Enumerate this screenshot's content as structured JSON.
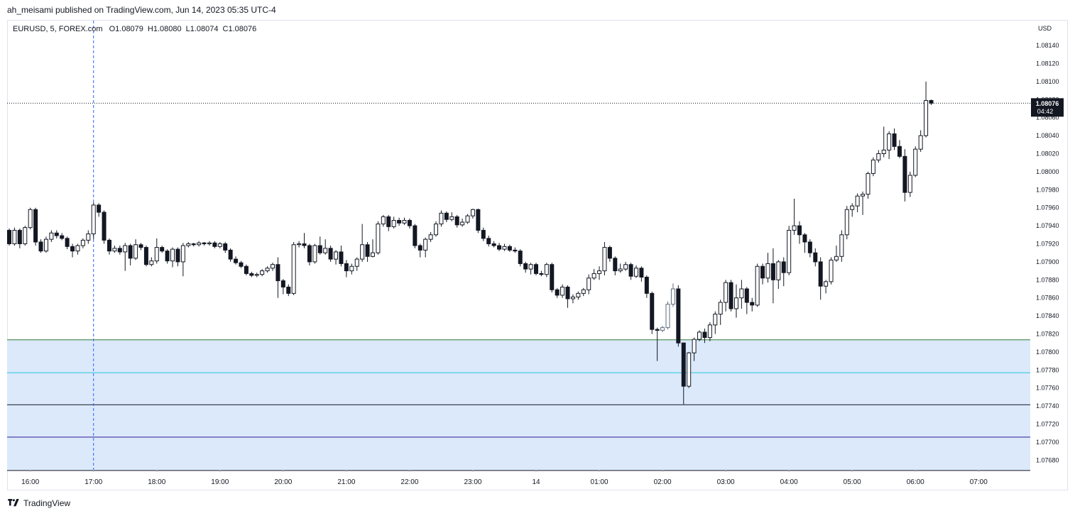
{
  "publisher_line": "ah_meisami published on TradingView.com, Jun 14, 2023 05:35 UTC-4",
  "legend": {
    "symbol": "EURUSD, 5, FOREX.com",
    "open": "O1.08079",
    "high": "H1.08080",
    "low": "L1.08074",
    "close": "C1.08076"
  },
  "currency": "USD",
  "footer": {
    "brand": "TradingView",
    "logo_icon": "tradingview-logo-icon"
  },
  "last_price": {
    "value": "1.08076",
    "countdown": "04:42"
  },
  "colors": {
    "zone_fill": "#dbe9fb",
    "zone_top_line": "#2e7d32",
    "cyan_line": "#26c6da",
    "black_line": "#131722",
    "purple_line": "#311b92",
    "vline": "#2962ff",
    "candle": "#131722",
    "highlight_candle": "#5d6b7e"
  },
  "chart_data": {
    "type": "candlestick",
    "y_ticks": [
      "1.08140",
      "1.08120",
      "1.08100",
      "1.08080",
      "1.08060",
      "1.08040",
      "1.08020",
      "1.08000",
      "1.07980",
      "1.07960",
      "1.07940",
      "1.07920",
      "1.07900",
      "1.07880",
      "1.07860",
      "1.07840",
      "1.07820",
      "1.07800",
      "1.07780",
      "1.07760",
      "1.07740",
      "1.07720",
      "1.07700",
      "1.07680"
    ],
    "ylim": [
      1.0767,
      1.0816
    ],
    "x_ticks": [
      {
        "label": "16:00",
        "bar": 4
      },
      {
        "label": "17:00",
        "bar": 16
      },
      {
        "label": "18:00",
        "bar": 28
      },
      {
        "label": "19:00",
        "bar": 40
      },
      {
        "label": "20:00",
        "bar": 52
      },
      {
        "label": "21:00",
        "bar": 64
      },
      {
        "label": "22:00",
        "bar": 76
      },
      {
        "label": "23:00",
        "bar": 88
      },
      {
        "label": "14",
        "bar": 100
      },
      {
        "label": "01:00",
        "bar": 112
      },
      {
        "label": "02:00",
        "bar": 124
      },
      {
        "label": "03:00",
        "bar": 136
      },
      {
        "label": "04:00",
        "bar": 148
      },
      {
        "label": "05:00",
        "bar": 160
      },
      {
        "label": "06:00",
        "bar": 172
      },
      {
        "label": "07:00",
        "bar": 184
      }
    ],
    "vertical_marker_bar": 16,
    "zone": {
      "top": 1.078135,
      "bottom": 1.076685
    },
    "horizontal_levels": [
      {
        "price": 1.078135,
        "role": "zone-top"
      },
      {
        "price": 1.07777,
        "role": "cyan"
      },
      {
        "price": 1.077415,
        "role": "black"
      },
      {
        "price": 1.077055,
        "role": "purple"
      },
      {
        "price": 1.076685,
        "role": "zone-bottom"
      }
    ],
    "highlight_bars": [
      124,
      125,
      126
    ],
    "candles": [
      [
        1.07935,
        1.0792,
        1.07937,
        1.07918
      ],
      [
        1.0792,
        1.07935,
        1.07938,
        1.07918
      ],
      [
        1.07935,
        1.0792,
        1.07937,
        1.07915
      ],
      [
        1.0792,
        1.07938,
        1.0794,
        1.07918
      ],
      [
        1.07938,
        1.07958,
        1.0796,
        1.07936
      ],
      [
        1.07958,
        1.07922,
        1.0796,
        1.07918
      ],
      [
        1.07922,
        1.07912,
        1.07925,
        1.0791
      ],
      [
        1.07912,
        1.07925,
        1.07928,
        1.0791
      ],
      [
        1.07925,
        1.07932,
        1.07935,
        1.07922
      ],
      [
        1.07932,
        1.07929,
        1.07935,
        1.07926
      ],
      [
        1.07929,
        1.07926,
        1.07932,
        1.07924
      ],
      [
        1.07926,
        1.07917,
        1.07928,
        1.07914
      ],
      [
        1.07917,
        1.07912,
        1.0792,
        1.07905
      ],
      [
        1.07912,
        1.07918,
        1.0792,
        1.07908
      ],
      [
        1.07918,
        1.07924,
        1.07926,
        1.07915
      ],
      [
        1.07924,
        1.07931,
        1.07935,
        1.0792
      ],
      [
        1.07931,
        1.07963,
        1.07966,
        1.07925
      ],
      [
        1.07963,
        1.07955,
        1.07965,
        1.0795
      ],
      [
        1.07955,
        1.07924,
        1.07957,
        1.0792
      ],
      [
        1.07924,
        1.07912,
        1.07926,
        1.07908
      ],
      [
        1.07912,
        1.07915,
        1.07918,
        1.0791
      ],
      [
        1.07915,
        1.07911,
        1.07918,
        1.07908
      ],
      [
        1.07911,
        1.07918,
        1.07921,
        1.0789
      ],
      [
        1.07918,
        1.07904,
        1.0792,
        1.07896
      ],
      [
        1.07904,
        1.07919,
        1.07925,
        1.07902
      ],
      [
        1.07919,
        1.07916,
        1.07921,
        1.07913
      ],
      [
        1.07916,
        1.07897,
        1.07918,
        1.07895
      ],
      [
        1.07897,
        1.07901,
        1.07905,
        1.07895
      ],
      [
        1.07901,
        1.07916,
        1.07926,
        1.07898
      ],
      [
        1.07916,
        1.07912,
        1.07918,
        1.0791
      ],
      [
        1.07912,
        1.07901,
        1.07914,
        1.07898
      ],
      [
        1.07901,
        1.07914,
        1.07916,
        1.07894
      ],
      [
        1.07914,
        1.079,
        1.07916,
        1.07895
      ],
      [
        1.079,
        1.07918,
        1.07921,
        1.07884
      ],
      [
        1.07918,
        1.0792,
        1.07922,
        1.07916
      ],
      [
        1.0792,
        1.07919,
        1.07921,
        1.07917
      ],
      [
        1.07919,
        1.07921,
        1.07923,
        1.07917
      ],
      [
        1.07921,
        1.0792,
        1.07922,
        1.07918
      ],
      [
        1.0792,
        1.07921,
        1.07923,
        1.07918
      ],
      [
        1.07921,
        1.07917,
        1.07923,
        1.07915
      ],
      [
        1.07917,
        1.0792,
        1.07922,
        1.07915
      ],
      [
        1.0792,
        1.07913,
        1.07922,
        1.0791
      ],
      [
        1.07913,
        1.07903,
        1.07915,
        1.079
      ],
      [
        1.07903,
        1.07899,
        1.07906,
        1.07897
      ],
      [
        1.07899,
        1.07895,
        1.07901,
        1.07893
      ],
      [
        1.07895,
        1.07887,
        1.07897,
        1.07885
      ],
      [
        1.07887,
        1.07885,
        1.07889,
        1.07883
      ],
      [
        1.07885,
        1.07886,
        1.07888,
        1.07883
      ],
      [
        1.07886,
        1.0789,
        1.07892,
        1.07884
      ],
      [
        1.0789,
        1.07893,
        1.07895,
        1.07888
      ],
      [
        1.07893,
        1.07897,
        1.07899,
        1.0789
      ],
      [
        1.07897,
        1.07879,
        1.07905,
        1.0786
      ],
      [
        1.07879,
        1.07872,
        1.07881,
        1.07864
      ],
      [
        1.07872,
        1.07865,
        1.07875,
        1.07862
      ],
      [
        1.07865,
        1.07919,
        1.07922,
        1.07863
      ],
      [
        1.07919,
        1.0792,
        1.07923,
        1.07916
      ],
      [
        1.0792,
        1.07918,
        1.07932,
        1.07915
      ],
      [
        1.07918,
        1.079,
        1.0792,
        1.07896
      ],
      [
        1.079,
        1.07918,
        1.0792,
        1.07898
      ],
      [
        1.07918,
        1.0791,
        1.07928,
        1.07908
      ],
      [
        1.0791,
        1.07915,
        1.07925,
        1.07908
      ],
      [
        1.07915,
        1.07903,
        1.07918,
        1.079
      ],
      [
        1.07903,
        1.07911,
        1.07913,
        1.07897
      ],
      [
        1.07911,
        1.07898,
        1.07918,
        1.07895
      ],
      [
        1.07898,
        1.0789,
        1.07902,
        1.07883
      ],
      [
        1.0789,
        1.07895,
        1.07898,
        1.07886
      ],
      [
        1.07895,
        1.07903,
        1.07905,
        1.0789
      ],
      [
        1.07903,
        1.07919,
        1.07942,
        1.079
      ],
      [
        1.07919,
        1.07906,
        1.07922,
        1.079
      ],
      [
        1.07906,
        1.0791,
        1.07925,
        1.07905
      ],
      [
        1.0791,
        1.07942,
        1.07945,
        1.07908
      ],
      [
        1.07942,
        1.0795,
        1.07952,
        1.07939
      ],
      [
        1.0795,
        1.07939,
        1.07952,
        1.07934
      ],
      [
        1.07939,
        1.07946,
        1.0795,
        1.07937
      ],
      [
        1.07946,
        1.07943,
        1.07949,
        1.0794
      ],
      [
        1.07943,
        1.07946,
        1.07949,
        1.07941
      ],
      [
        1.07946,
        1.0794,
        1.07948,
        1.07937
      ],
      [
        1.0794,
        1.07918,
        1.07942,
        1.07915
      ],
      [
        1.07918,
        1.07913,
        1.0792,
        1.07905
      ],
      [
        1.07913,
        1.07925,
        1.07927,
        1.07905
      ],
      [
        1.07925,
        1.0793,
        1.07933,
        1.07922
      ],
      [
        1.0793,
        1.07942,
        1.07945,
        1.07928
      ],
      [
        1.07942,
        1.07954,
        1.07957,
        1.07939
      ],
      [
        1.07954,
        1.07947,
        1.07956,
        1.07944
      ],
      [
        1.07947,
        1.0795,
        1.07955,
        1.07945
      ],
      [
        1.0795,
        1.07941,
        1.07952,
        1.07938
      ],
      [
        1.07941,
        1.07944,
        1.07948,
        1.07939
      ],
      [
        1.07944,
        1.07951,
        1.07953,
        1.07942
      ],
      [
        1.07951,
        1.07958,
        1.07959,
        1.07948
      ],
      [
        1.07958,
        1.07935,
        1.07959,
        1.07932
      ],
      [
        1.07935,
        1.07926,
        1.07938,
        1.07923
      ],
      [
        1.07926,
        1.0792,
        1.07929,
        1.07917
      ],
      [
        1.0792,
        1.07918,
        1.07923,
        1.07916
      ],
      [
        1.07918,
        1.07914,
        1.07921,
        1.07912
      ],
      [
        1.07914,
        1.07917,
        1.0792,
        1.07912
      ],
      [
        1.07917,
        1.07913,
        1.07919,
        1.07911
      ],
      [
        1.07913,
        1.07912,
        1.07916,
        1.0791
      ],
      [
        1.07912,
        1.07898,
        1.07914,
        1.07895
      ],
      [
        1.07898,
        1.07892,
        1.079,
        1.07888
      ],
      [
        1.07892,
        1.07897,
        1.07899,
        1.07886
      ],
      [
        1.07897,
        1.07887,
        1.07899,
        1.07885
      ],
      [
        1.07887,
        1.07886,
        1.0789,
        1.07884
      ],
      [
        1.07886,
        1.07897,
        1.07899,
        1.07883
      ],
      [
        1.07897,
        1.07869,
        1.07899,
        1.07866
      ],
      [
        1.07869,
        1.07863,
        1.07871,
        1.0786
      ],
      [
        1.07863,
        1.07872,
        1.07875,
        1.0786
      ],
      [
        1.07872,
        1.07859,
        1.07874,
        1.07849
      ],
      [
        1.07859,
        1.07861,
        1.07864,
        1.07854
      ],
      [
        1.07861,
        1.07865,
        1.07867,
        1.07858
      ],
      [
        1.07865,
        1.07869,
        1.07871,
        1.07862
      ],
      [
        1.07869,
        1.07882,
        1.07886,
        1.07864
      ],
      [
        1.07882,
        1.07887,
        1.07892,
        1.0788
      ],
      [
        1.07887,
        1.0789,
        1.07895,
        1.0788
      ],
      [
        1.0789,
        1.07916,
        1.07922,
        1.07885
      ],
      [
        1.07916,
        1.07904,
        1.07918,
        1.079
      ],
      [
        1.07904,
        1.0789,
        1.07906,
        1.07885
      ],
      [
        1.0789,
        1.07892,
        1.07898,
        1.07888
      ],
      [
        1.07892,
        1.07897,
        1.079,
        1.0789
      ],
      [
        1.07897,
        1.07884,
        1.07899,
        1.0788
      ],
      [
        1.07884,
        1.07893,
        1.07896,
        1.07882
      ],
      [
        1.07893,
        1.07883,
        1.07895,
        1.07878
      ],
      [
        1.07883,
        1.07865,
        1.07885,
        1.0786
      ],
      [
        1.07865,
        1.07825,
        1.07867,
        1.0782
      ],
      [
        1.07825,
        1.07824,
        1.07827,
        1.0779
      ],
      [
        1.07824,
        1.07827,
        1.07829,
        1.07822
      ],
      [
        1.07827,
        1.07853,
        1.07856,
        1.07825
      ],
      [
        1.07853,
        1.0787,
        1.07876,
        1.0785
      ],
      [
        1.0787,
        1.0781,
        1.07874,
        1.07806
      ],
      [
        1.0781,
        1.07762,
        1.0781,
        1.07742
      ],
      [
        1.07762,
        1.07799,
        1.078,
        1.0776
      ],
      [
        1.07799,
        1.07814,
        1.07816,
        1.0779
      ],
      [
        1.07814,
        1.07822,
        1.07824,
        1.07812
      ],
      [
        1.07822,
        1.07816,
        1.07826,
        1.0781
      ],
      [
        1.07816,
        1.0783,
        1.07833,
        1.07812
      ],
      [
        1.0783,
        1.07842,
        1.07845,
        1.0782
      ],
      [
        1.07842,
        1.07855,
        1.07858,
        1.0783
      ],
      [
        1.07855,
        1.07877,
        1.0788,
        1.07845
      ],
      [
        1.07877,
        1.07848,
        1.0788,
        1.07845
      ],
      [
        1.07848,
        1.0786,
        1.07875,
        1.07838
      ],
      [
        1.0786,
        1.0787,
        1.0788,
        1.07848
      ],
      [
        1.0787,
        1.07855,
        1.07872,
        1.07842
      ],
      [
        1.07855,
        1.07852,
        1.0786,
        1.07845
      ],
      [
        1.07852,
        1.07895,
        1.07898,
        1.0785
      ],
      [
        1.07895,
        1.07882,
        1.07898,
        1.07875
      ],
      [
        1.07882,
        1.07898,
        1.0791,
        1.07877
      ],
      [
        1.07898,
        1.0788,
        1.07915,
        1.07854
      ],
      [
        1.0788,
        1.079,
        1.07902,
        1.0787
      ],
      [
        1.079,
        1.07888,
        1.07905,
        1.07873
      ],
      [
        1.07888,
        1.07935,
        1.0794,
        1.07885
      ],
      [
        1.07935,
        1.0794,
        1.0797,
        1.0793
      ],
      [
        1.0794,
        1.0793,
        1.07945,
        1.0792
      ],
      [
        1.0793,
        1.07922,
        1.07932,
        1.0791
      ],
      [
        1.07922,
        1.0791,
        1.07925,
        1.07905
      ],
      [
        1.0791,
        1.079,
        1.07915,
        1.07895
      ],
      [
        1.079,
        1.07873,
        1.07905,
        1.07858
      ],
      [
        1.07873,
        1.07878,
        1.0788,
        1.07865
      ],
      [
        1.07878,
        1.07902,
        1.07905,
        1.07875
      ],
      [
        1.07902,
        1.07906,
        1.07918,
        1.079
      ],
      [
        1.07906,
        1.0793,
        1.07935,
        1.079
      ],
      [
        1.0793,
        1.07958,
        1.07962,
        1.07925
      ],
      [
        1.07958,
        1.07962,
        1.07965,
        1.0795
      ],
      [
        1.07962,
        1.07973,
        1.07976,
        1.07955
      ],
      [
        1.07973,
        1.07975,
        1.07978,
        1.07952
      ],
      [
        1.07975,
        1.07998,
        1.08,
        1.0797
      ],
      [
        1.07998,
        1.08013,
        1.08016,
        1.07995
      ],
      [
        1.08013,
        1.0802,
        1.08024,
        1.0801
      ],
      [
        1.0802,
        1.08024,
        1.0805,
        1.08016
      ],
      [
        1.08024,
        1.08042,
        1.08045,
        1.08014
      ],
      [
        1.08042,
        1.08028,
        1.08048,
        1.08024
      ],
      [
        1.08028,
        1.08017,
        1.08035,
        1.08015
      ],
      [
        1.08017,
        1.07977,
        1.08025,
        1.07967
      ],
      [
        1.07977,
        1.07996,
        1.08,
        1.07972
      ],
      [
        1.07996,
        1.08025,
        1.08028,
        1.07994
      ],
      [
        1.08025,
        1.0804,
        1.08046,
        1.08022
      ],
      [
        1.0804,
        1.08079,
        1.081,
        1.08038
      ],
      [
        1.08079,
        1.08076,
        1.0808,
        1.08074
      ]
    ]
  }
}
